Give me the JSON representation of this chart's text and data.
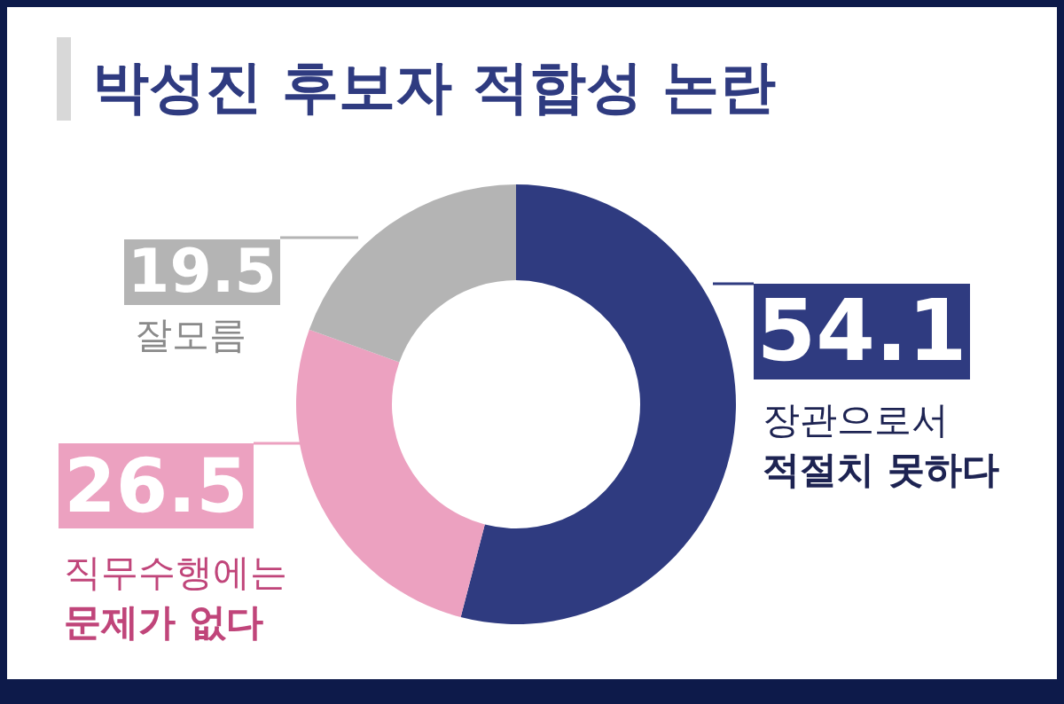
{
  "chart_data": {
    "type": "donut",
    "title": "박성진 후보자 적합성 논란",
    "categories": [
      "장관으로서\n적절치 못하다",
      "직무수행에는\n문제가 없다",
      "잘모름"
    ],
    "values": [
      54.1,
      26.5,
      19.5
    ],
    "colors": [
      "#2f3b80",
      "#eca1c0",
      "#b4b4b4"
    ],
    "data_labels": true
  }
}
